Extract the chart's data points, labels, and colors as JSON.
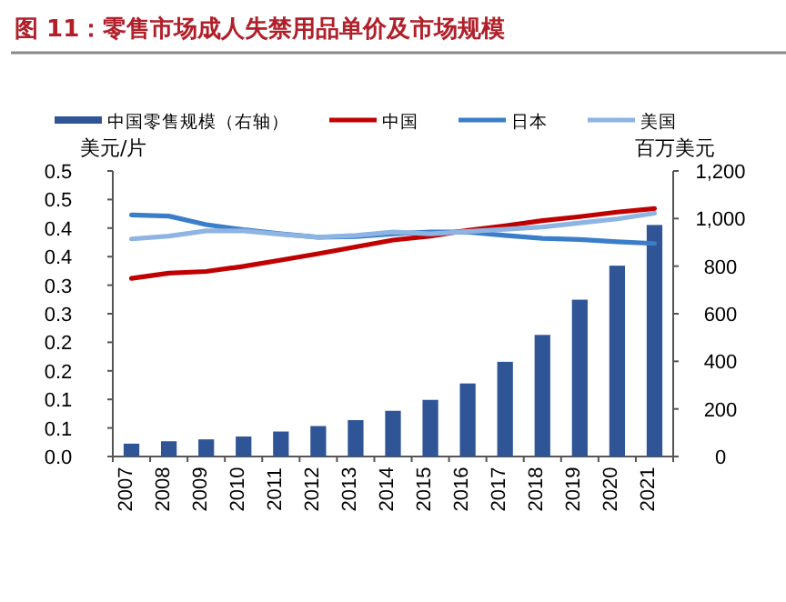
{
  "chart_data": {
    "type": "line",
    "title": "图 11：零售市场成人失禁用品单价及市场规模",
    "ylabel": "美元/片",
    "y2label": "百万美元",
    "categories": [
      "2007",
      "2008",
      "2009",
      "2010",
      "2011",
      "2012",
      "2013",
      "2014",
      "2015",
      "2016",
      "2017",
      "2018",
      "2019",
      "2020",
      "2021"
    ],
    "series": [
      {
        "name": "中国零售规模（右轴）",
        "type": "bar",
        "axis": "y2",
        "color": "#2f5597",
        "values": [
          54,
          64,
          72,
          84,
          105,
          128,
          153,
          192,
          238,
          307,
          398,
          511,
          659,
          802,
          973
        ]
      },
      {
        "name": "中国",
        "color": "#c00000",
        "values": [
          0.312,
          0.321,
          0.324,
          0.333,
          0.344,
          0.355,
          0.367,
          0.379,
          0.386,
          0.396,
          0.404,
          0.413,
          0.42,
          0.428,
          0.434
        ]
      },
      {
        "name": "日本",
        "color": "#3a7dc9",
        "values": [
          0.423,
          0.421,
          0.406,
          0.397,
          0.39,
          0.384,
          0.385,
          0.39,
          0.393,
          0.393,
          0.387,
          0.382,
          0.38,
          0.376,
          0.373
        ]
      },
      {
        "name": "美国",
        "color": "#8db4e2",
        "values": [
          0.381,
          0.386,
          0.395,
          0.395,
          0.389,
          0.384,
          0.387,
          0.393,
          0.39,
          0.394,
          0.398,
          0.402,
          0.409,
          0.416,
          0.426
        ]
      }
    ],
    "ylim": [
      0,
      0.5
    ],
    "yticks": [
      {
        "value": 0,
        "label": "0.0"
      },
      {
        "value": 0.05,
        "label": "0.1"
      },
      {
        "value": 0.1,
        "label": "0.1"
      },
      {
        "value": 0.15,
        "label": "0.2"
      },
      {
        "value": 0.2,
        "label": "0.2"
      },
      {
        "value": 0.25,
        "label": "0.3"
      },
      {
        "value": 0.3,
        "label": "0.3"
      },
      {
        "value": 0.35,
        "label": "0.4"
      },
      {
        "value": 0.4,
        "label": "0.4"
      },
      {
        "value": 0.45,
        "label": "0.5"
      },
      {
        "value": 0.5,
        "label": "0.5"
      }
    ],
    "y2lim": [
      0,
      1200
    ],
    "y2ticks": [
      0,
      200,
      400,
      600,
      800,
      {
        "value": 1000,
        "label": "1,000"
      },
      {
        "value": 1200,
        "label": "1,200"
      }
    ],
    "legend": "top",
    "grid": false,
    "marker": "none",
    "line_style": "solid"
  }
}
